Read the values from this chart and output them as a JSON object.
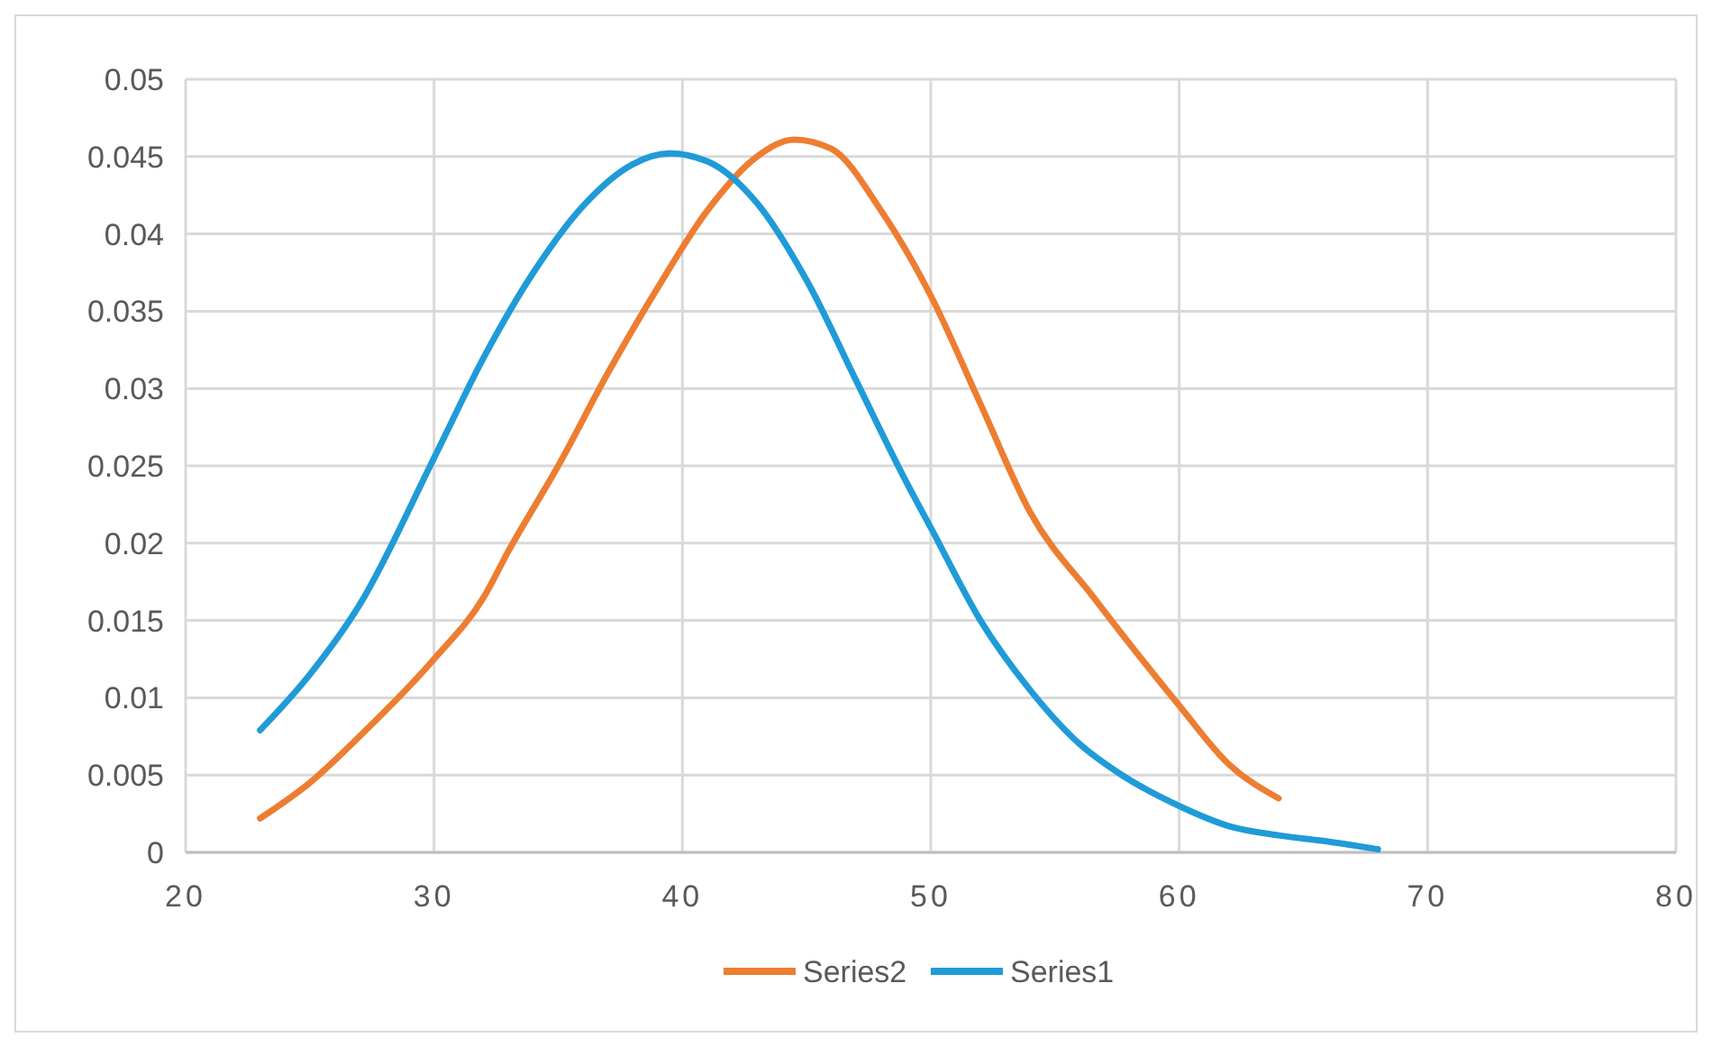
{
  "chart_data": {
    "type": "line",
    "xlim": [
      20,
      80
    ],
    "xticks": [
      20,
      30,
      40,
      50,
      60,
      70,
      80
    ],
    "ylim": [
      0,
      0.05
    ],
    "yticks": [
      0,
      0.005,
      0.01,
      0.015,
      0.02,
      0.025,
      0.03,
      0.035,
      0.04,
      0.045,
      0.05
    ],
    "grid": true,
    "legend": "bottom",
    "marker": "none",
    "series": [
      {
        "name": "Series2",
        "color": "#ed7d31",
        "x": [
          23,
          25,
          27,
          30,
          32,
          33,
          35,
          37,
          39,
          41,
          43,
          44.5,
          46,
          48,
          50,
          52,
          54,
          56.6,
          60,
          62,
          64
        ],
        "values": [
          0.0022,
          0.0045,
          0.0075,
          0.0125,
          0.0165,
          0.0195,
          0.025,
          0.031,
          0.0365,
          0.0415,
          0.045,
          0.0461,
          0.0455,
          0.0415,
          0.036,
          0.029,
          0.022,
          0.0164,
          0.0095,
          0.0057,
          0.0035
        ]
      },
      {
        "name": "Series1",
        "color": "#1f9bd7",
        "x": [
          23,
          25,
          27,
          30,
          32,
          34,
          36,
          38,
          39.5,
          41,
          43,
          45,
          47,
          49,
          50,
          52,
          54,
          56,
          57.5,
          60,
          62,
          64,
          66,
          68
        ],
        "values": [
          0.0079,
          0.0115,
          0.016,
          0.0255,
          0.032,
          0.0375,
          0.0418,
          0.0445,
          0.0452,
          0.0447,
          0.042,
          0.037,
          0.0305,
          0.024,
          0.021,
          0.015,
          0.0105,
          0.007,
          0.0052,
          0.003,
          0.0017,
          0.0011,
          0.0007,
          0.0002
        ]
      }
    ]
  }
}
